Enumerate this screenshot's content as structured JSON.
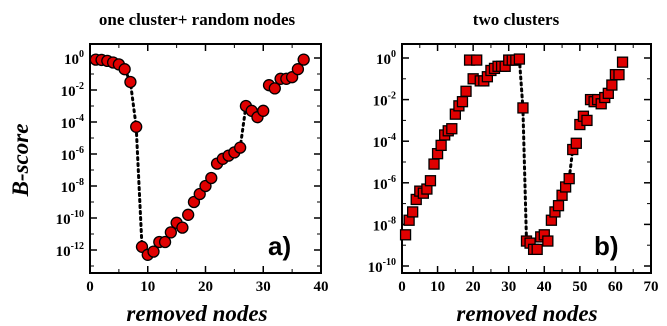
{
  "chart_data": [
    {
      "type": "scatter",
      "title": "one cluster+ random nodes",
      "xlabel": "removed nodes",
      "ylabel": "B-score",
      "panel_label": "a)",
      "xlim": [
        0,
        40
      ],
      "ylim_log10": [
        -13,
        0
      ],
      "yscale": "log",
      "xticks": [
        0,
        10,
        20,
        30,
        40
      ],
      "yticks": [
        {
          "base": "10",
          "exp": "0"
        },
        {
          "base": "10",
          "exp": "-2"
        },
        {
          "base": "10",
          "exp": "-4"
        },
        {
          "base": "10",
          "exp": "-6"
        },
        {
          "base": "10",
          "exp": "-8"
        },
        {
          "base": "10",
          "exp": "-10"
        },
        {
          "base": "10",
          "exp": "-12"
        }
      ],
      "marker": "circle",
      "marker_color": "#e00000",
      "series": [
        {
          "x": [
            1,
            2,
            3,
            4,
            5,
            6,
            7,
            8,
            9,
            10,
            11,
            12,
            13,
            14,
            15,
            16,
            17,
            18,
            19,
            20,
            21,
            22,
            23,
            24,
            25,
            26,
            27,
            28,
            29,
            30,
            31,
            32,
            33,
            34,
            35,
            36,
            37
          ],
          "y_log10": [
            -0.1,
            -0.12,
            -0.18,
            -0.28,
            -0.4,
            -0.7,
            -1.5,
            -4.3,
            -11.8,
            -12.3,
            -12.1,
            -11.5,
            -11.5,
            -10.9,
            -10.3,
            -10.6,
            -9.8,
            -9.0,
            -8.5,
            -8.0,
            -7.5,
            -6.6,
            -6.3,
            -6.1,
            -5.9,
            -5.6,
            -3.0,
            -3.3,
            -3.7,
            -3.3,
            -1.7,
            -1.9,
            -1.3,
            -1.3,
            -1.2,
            -0.7,
            -0.1
          ]
        }
      ],
      "dotted_segments": [
        [
          6,
          9
        ],
        [
          25,
          27
        ]
      ]
    },
    {
      "type": "scatter",
      "title": "two clusters",
      "xlabel": "removed nodes",
      "ylabel": "",
      "panel_label": "b)",
      "xlim": [
        0,
        70
      ],
      "ylim_log10": [
        -10,
        0
      ],
      "yscale": "log",
      "xticks": [
        0,
        10,
        20,
        30,
        40,
        50,
        60,
        70
      ],
      "yticks": [
        {
          "base": "10",
          "exp": "0"
        },
        {
          "base": "10",
          "exp": "-2"
        },
        {
          "base": "10",
          "exp": "-4"
        },
        {
          "base": "10",
          "exp": "-6"
        },
        {
          "base": "10",
          "exp": "-8"
        },
        {
          "base": "10",
          "exp": "-10"
        }
      ],
      "marker": "square",
      "marker_color": "#e00000",
      "series": [
        {
          "x": [
            1,
            2,
            3,
            4,
            5,
            6,
            7,
            8,
            9,
            10,
            11,
            12,
            13,
            14,
            15,
            16,
            17,
            18,
            19,
            20,
            21,
            22,
            23,
            24,
            25,
            26,
            27,
            28,
            29,
            30,
            31,
            32,
            33,
            34,
            35,
            36,
            37,
            38,
            39,
            40,
            41,
            42,
            43,
            44,
            45,
            46,
            47,
            48,
            49,
            50,
            51,
            52,
            53,
            54,
            55,
            56,
            57,
            58,
            59,
            60,
            61,
            62
          ],
          "y_log10": [
            -8.5,
            -7.8,
            -7.4,
            -6.8,
            -6.4,
            -6.5,
            -6.3,
            -5.9,
            -5.1,
            -4.6,
            -4.2,
            -3.7,
            -3.5,
            -3.4,
            -2.7,
            -2.3,
            -2.1,
            -1.6,
            -0.1,
            -1.0,
            -0.1,
            -1.1,
            -1.1,
            -0.9,
            -0.6,
            -0.5,
            -0.4,
            -0.4,
            -0.4,
            -0.1,
            -0.1,
            -0.1,
            -0.05,
            -2.4,
            -8.8,
            -8.9,
            -9.2,
            -9.2,
            -8.6,
            -8.5,
            -8.8,
            -7.8,
            -7.4,
            -7.1,
            -6.6,
            -6.2,
            -5.8,
            -4.4,
            -4.1,
            -3.2,
            -2.8,
            -3.0,
            -2.0,
            -2.1,
            -2.0,
            -2.2,
            -1.9,
            -1.7,
            -1.3,
            -0.8,
            -0.8,
            -0.2
          ]
        }
      ],
      "dotted_segments": [
        [
          33,
          35
        ],
        [
          47,
          49
        ]
      ]
    }
  ]
}
